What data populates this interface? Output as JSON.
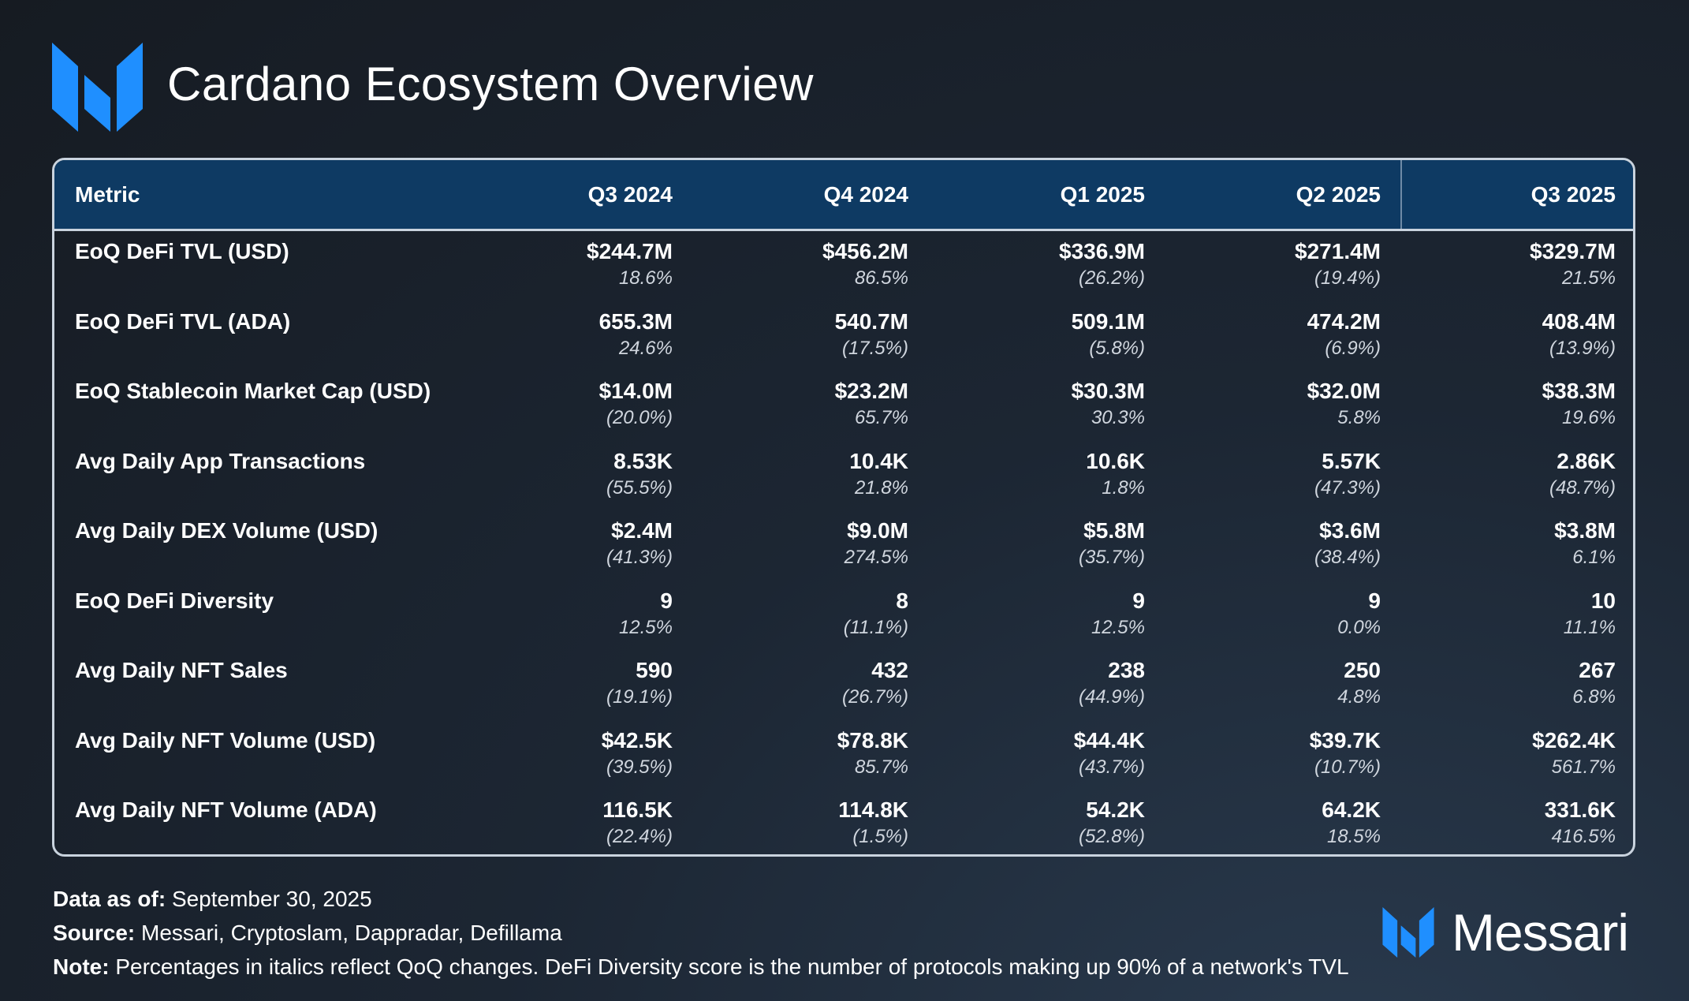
{
  "title": "Cardano Ecosystem Overview",
  "colors": {
    "accent": "#1f8fff",
    "header_bg": "#0e3a63",
    "background": "#1c2633"
  },
  "icons": [
    "messari-logo-icon"
  ],
  "chart_data": {
    "type": "table",
    "columns": [
      "Metric",
      "Q3 2024",
      "Q4 2024",
      "Q1 2025",
      "Q2 2025",
      "Q3 2025"
    ],
    "rows": [
      {
        "metric": "EoQ DeFi TVL (USD)",
        "values": [
          "$244.7M",
          "$456.2M",
          "$336.9M",
          "$271.4M",
          "$329.7M"
        ],
        "changes": [
          "18.6%",
          "86.5%",
          "(26.2%)",
          "(19.4%)",
          "21.5%"
        ]
      },
      {
        "metric": "EoQ DeFi TVL (ADA)",
        "values": [
          "655.3M",
          "540.7M",
          "509.1M",
          "474.2M",
          "408.4M"
        ],
        "changes": [
          "24.6%",
          "(17.5%)",
          "(5.8%)",
          "(6.9%)",
          "(13.9%)"
        ]
      },
      {
        "metric": "EoQ Stablecoin Market Cap (USD)",
        "values": [
          "$14.0M",
          "$23.2M",
          "$30.3M",
          "$32.0M",
          "$38.3M"
        ],
        "changes": [
          "(20.0%)",
          "65.7%",
          "30.3%",
          "5.8%",
          "19.6%"
        ]
      },
      {
        "metric": "Avg Daily App Transactions",
        "values": [
          "8.53K",
          "10.4K",
          "10.6K",
          "5.57K",
          "2.86K"
        ],
        "changes": [
          "(55.5%)",
          "21.8%",
          "1.8%",
          "(47.3%)",
          "(48.7%)"
        ]
      },
      {
        "metric": "Avg Daily DEX Volume (USD)",
        "values": [
          "$2.4M",
          "$9.0M",
          "$5.8M",
          "$3.6M",
          "$3.8M"
        ],
        "changes": [
          "(41.3%)",
          "274.5%",
          "(35.7%)",
          "(38.4%)",
          "6.1%"
        ]
      },
      {
        "metric": "EoQ DeFi Diversity",
        "values": [
          "9",
          "8",
          "9",
          "9",
          "10"
        ],
        "changes": [
          "12.5%",
          "(11.1%)",
          "12.5%",
          "0.0%",
          "11.1%"
        ]
      },
      {
        "metric": "Avg Daily NFT Sales",
        "values": [
          "590",
          "432",
          "238",
          "250",
          "267"
        ],
        "changes": [
          "(19.1%)",
          "(26.7%)",
          "(44.9%)",
          "4.8%",
          "6.8%"
        ]
      },
      {
        "metric": "Avg Daily NFT Volume (USD)",
        "values": [
          "$42.5K",
          "$78.8K",
          "$44.4K",
          "$39.7K",
          "$262.4K"
        ],
        "changes": [
          "(39.5%)",
          "85.7%",
          "(43.7%)",
          "(10.7%)",
          "561.7%"
        ]
      },
      {
        "metric": "Avg Daily NFT Volume (ADA)",
        "values": [
          "116.5K",
          "114.8K",
          "54.2K",
          "64.2K",
          "331.6K"
        ],
        "changes": [
          "(22.4%)",
          "(1.5%)",
          "(52.8%)",
          "18.5%",
          "416.5%"
        ]
      }
    ]
  },
  "footer": {
    "data_as_of_label": "Data as of:",
    "data_as_of_value": "September 30, 2025",
    "source_label": "Source:",
    "source_value": "Messari, Cryptoslam, Dappradar, Defillama",
    "note_label": "Note:",
    "note_value": "Percentages in italics reflect QoQ changes. DeFi Diversity score is the number of protocols making up 90% of a network's TVL"
  },
  "brand": {
    "name": "Messari"
  }
}
